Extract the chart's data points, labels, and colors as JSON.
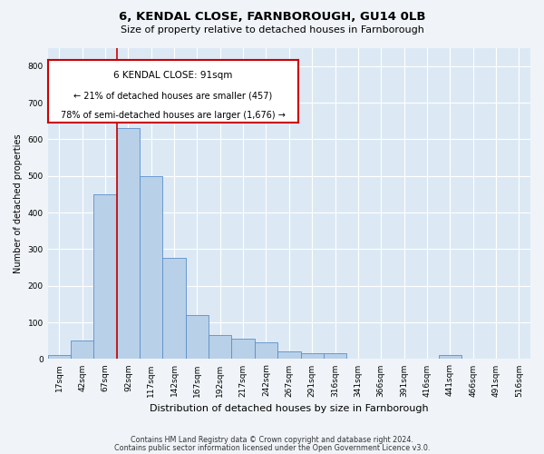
{
  "title": "6, KENDAL CLOSE, FARNBOROUGH, GU14 0LB",
  "subtitle": "Size of property relative to detached houses in Farnborough",
  "xlabel": "Distribution of detached houses by size in Farnborough",
  "ylabel": "Number of detached properties",
  "footnote1": "Contains HM Land Registry data © Crown copyright and database right 2024.",
  "footnote2": "Contains public sector information licensed under the Open Government Licence v3.0.",
  "bar_labels": [
    "17sqm",
    "42sqm",
    "67sqm",
    "92sqm",
    "117sqm",
    "142sqm",
    "167sqm",
    "192sqm",
    "217sqm",
    "242sqm",
    "267sqm",
    "291sqm",
    "316sqm",
    "341sqm",
    "366sqm",
    "391sqm",
    "416sqm",
    "441sqm",
    "466sqm",
    "491sqm",
    "516sqm"
  ],
  "bar_values": [
    10,
    50,
    450,
    630,
    500,
    275,
    120,
    65,
    55,
    45,
    20,
    15,
    15,
    0,
    0,
    0,
    0,
    10,
    0,
    0,
    0
  ],
  "bar_color": "#b8d0e8",
  "bar_edge_color": "#5b8fc9",
  "bg_color": "#dce9f5",
  "grid_color": "#ffffff",
  "property_label": "6 KENDAL CLOSE: 91sqm",
  "annotation_line1": "← 21% of detached houses are smaller (457)",
  "annotation_line2": "78% of semi-detached houses are larger (1,676) →",
  "annotation_box_color": "#ffffff",
  "annotation_box_edge": "#cc0000",
  "ylim": [
    0,
    850
  ],
  "yticks": [
    0,
    100,
    200,
    300,
    400,
    500,
    600,
    700,
    800
  ],
  "vline_color": "#cc0000",
  "vline_pos": 2.5,
  "fig_bg": "#f0f4f8"
}
